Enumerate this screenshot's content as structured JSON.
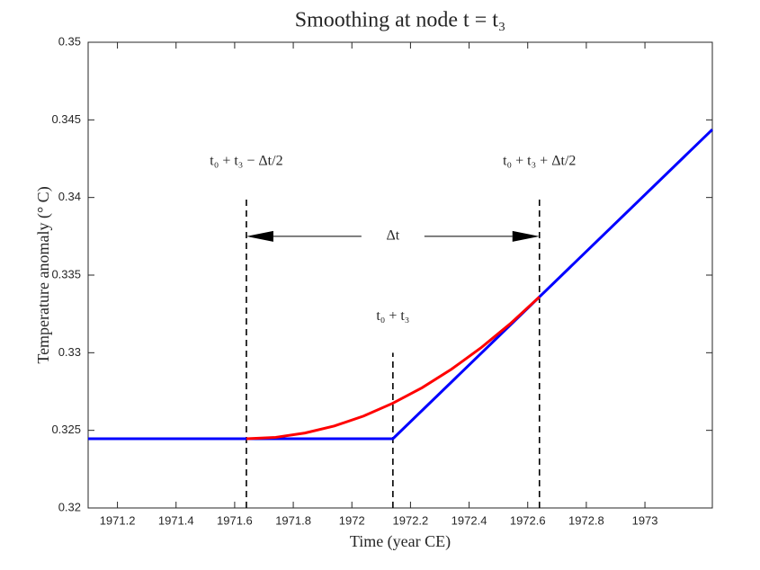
{
  "chart_data": {
    "type": "line",
    "title": "Smoothing at node t = t₃",
    "xlabel": "Time (year CE)",
    "ylabel": "Temperature anomaly (° C)",
    "xlim": [
      1971.1,
      1973.23
    ],
    "ylim": [
      0.32,
      0.35
    ],
    "xticks": [
      1971.2,
      1971.4,
      1971.6,
      1971.8,
      1972,
      1972.2,
      1972.4,
      1972.6,
      1972.8,
      1973
    ],
    "yticks": [
      0.32,
      0.325,
      0.33,
      0.335,
      0.34,
      0.345,
      0.35
    ],
    "series": [
      {
        "color": "#0000ff",
        "x": [
          1971.1,
          1972.14,
          1973.23
        ],
        "values": [
          0.32446,
          0.32446,
          0.34438
        ]
      },
      {
        "color": "#ff0000",
        "x": [
          1971.64,
          1971.74,
          1971.84,
          1971.94,
          1972.04,
          1972.14,
          1972.24,
          1972.34,
          1972.44,
          1972.54,
          1972.64
        ],
        "values": [
          0.32446,
          0.32455,
          0.32483,
          0.32528,
          0.32592,
          0.32675,
          0.32775,
          0.32894,
          0.33031,
          0.33186,
          0.3336
        ]
      }
    ],
    "vlines": [
      {
        "x": 1971.64,
        "top": 0.34,
        "label": "t₀ + t₃ − Δt/2"
      },
      {
        "x": 1972.14,
        "top": 0.33,
        "label": "t₀ + t₃"
      },
      {
        "x": 1972.64,
        "top": 0.34,
        "label": "t₀ + t₃ + Δt/2"
      }
    ],
    "arrow": {
      "y": 0.3375,
      "label": "Δt"
    }
  }
}
